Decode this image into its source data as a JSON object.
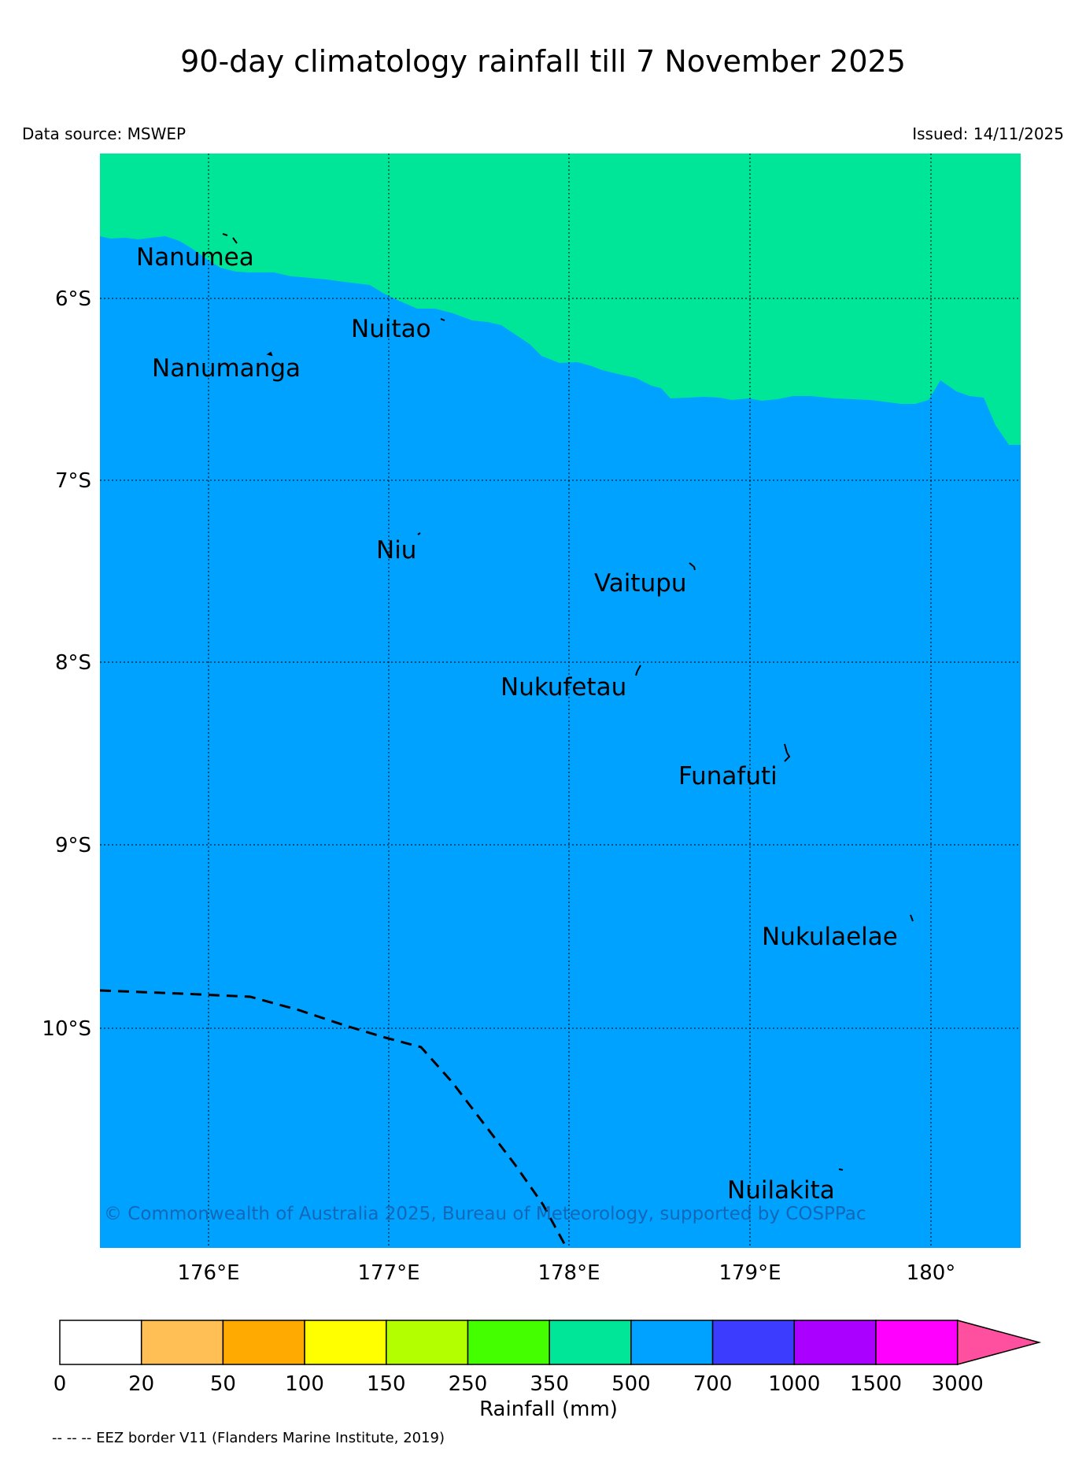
{
  "title": "90-day climatology rainfall till 7 November 2025",
  "data_source": "Data source: MSWEP",
  "issued": "Issued: 14/11/2025",
  "copyright": "© Commonwealth of Australia 2025, Bureau of Meteorology, supported by COSPPac",
  "footnote": "-- -- -- EEZ border V11 (Flanders Marine Institute, 2019)",
  "map": {
    "lat_labels": [
      "6°S",
      "7°S",
      "8°S",
      "9°S",
      "10°S"
    ],
    "lon_labels": [
      "176°E",
      "177°E",
      "178°E",
      "179°E",
      "180°"
    ],
    "places": [
      "Nanumea",
      "Nuitao",
      "Nanumanga",
      "Niu",
      "Vaitupu",
      "Nukufetau",
      "Funafuti",
      "Nukulaelae",
      "Nuilakita"
    ],
    "region_colors": {
      "north": "#00e699",
      "south": "#00a2ff"
    }
  },
  "colorbar": {
    "label": "Rainfall (mm)",
    "ticks": [
      "0",
      "20",
      "50",
      "100",
      "150",
      "250",
      "350",
      "500",
      "700",
      "1000",
      "1500",
      "3000"
    ],
    "colors": [
      "#ffffff",
      "#ffbf55",
      "#ffaa00",
      "#ffff00",
      "#b3ff00",
      "#44ff00",
      "#00e699",
      "#00a2ff",
      "#3c3cff",
      "#aa00ff",
      "#ff00ff",
      "#ff4f9f"
    ]
  }
}
